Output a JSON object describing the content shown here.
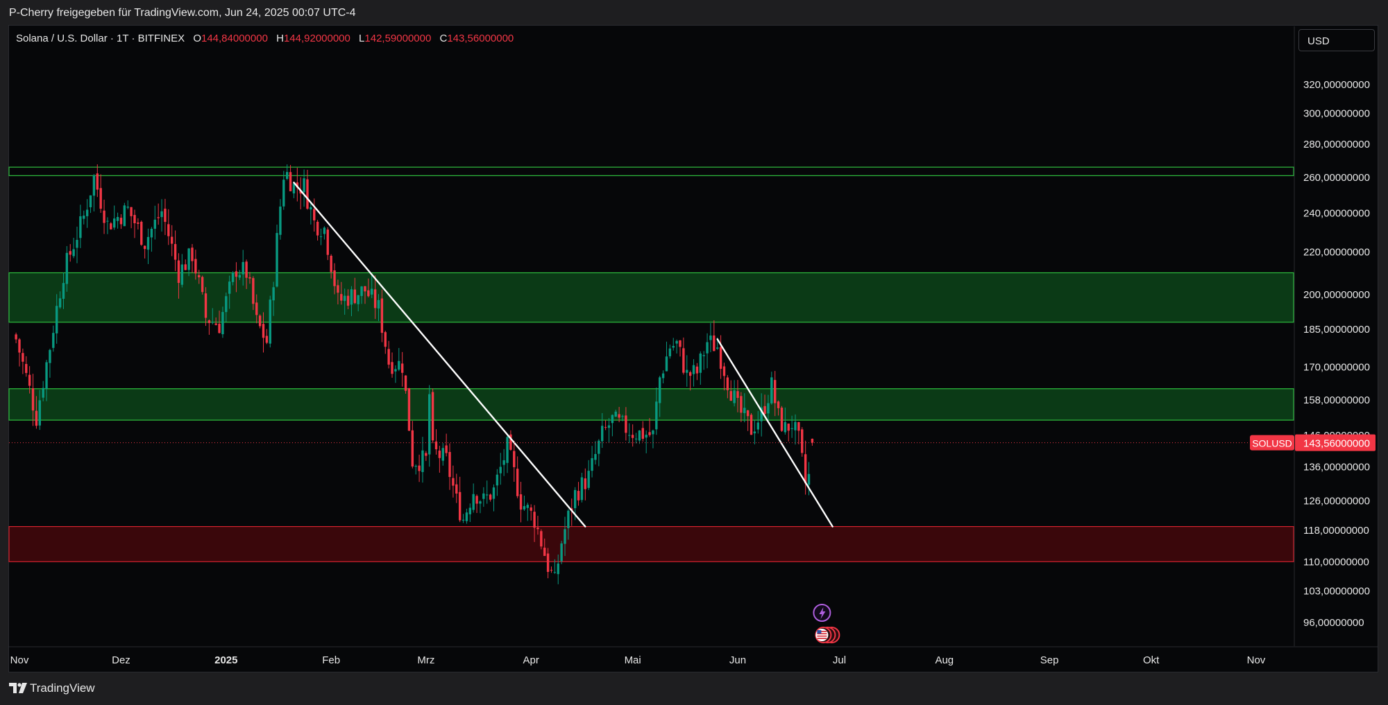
{
  "header": {
    "share_text": "P-Cherry freigegeben für TradingView.com, Jun 24, 2025 00:07 UTC-4"
  },
  "legend": {
    "symbol": "Solana / U.S. Dollar · 1T · BITFINEX",
    "open_label": "O",
    "open": "144,84000000",
    "high_label": "H",
    "high": "144,92000000",
    "low_label": "L",
    "low": "142,59000000",
    "close_label": "C",
    "close": "143,56000000"
  },
  "toolbar": {
    "currency": "USD"
  },
  "footer": {
    "brand": "TradingView"
  },
  "colors": {
    "background": "#060709",
    "up": "#089981",
    "down": "#f23645",
    "support_zone_fill": "#0b3a16",
    "support_zone_border": "#2fbf3f",
    "demand_zone_fill": "#3a070b",
    "demand_zone_border": "#d4232f",
    "trendline": "#ffffff"
  },
  "chart_data": {
    "type": "candlestick",
    "symbol": "SOLUSD",
    "exchange": "BITFINEX",
    "interval": "1T",
    "y_scale": "log",
    "y_ticks": [
      {
        "value": 320,
        "label": "320,00000000"
      },
      {
        "value": 300,
        "label": "300,00000000"
      },
      {
        "value": 280,
        "label": "280,00000000"
      },
      {
        "value": 260,
        "label": "260,00000000"
      },
      {
        "value": 240,
        "label": "240,00000000"
      },
      {
        "value": 220,
        "label": "220,00000000"
      },
      {
        "value": 200,
        "label": "200,00000000"
      },
      {
        "value": 185,
        "label": "185,00000000"
      },
      {
        "value": 170,
        "label": "170,00000000"
      },
      {
        "value": 158,
        "label": "158,00000000"
      },
      {
        "value": 146,
        "label": "146,00000000"
      },
      {
        "value": 136,
        "label": "136,00000000"
      },
      {
        "value": 126,
        "label": "126,00000000"
      },
      {
        "value": 118,
        "label": "118,00000000"
      },
      {
        "value": 110,
        "label": "110,00000000"
      },
      {
        "value": 103,
        "label": "103,00000000"
      },
      {
        "value": 96,
        "label": "96,00000000"
      }
    ],
    "x_ticks": [
      {
        "date": "2024-11-01",
        "label": "Nov",
        "bold": false
      },
      {
        "date": "2024-12-01",
        "label": "Dez",
        "bold": false
      },
      {
        "date": "2025-01-01",
        "label": "2025",
        "bold": true
      },
      {
        "date": "2025-02-01",
        "label": "Feb",
        "bold": false
      },
      {
        "date": "2025-03-01",
        "label": "Mrz",
        "bold": false
      },
      {
        "date": "2025-04-01",
        "label": "Apr",
        "bold": false
      },
      {
        "date": "2025-05-01",
        "label": "Mai",
        "bold": false
      },
      {
        "date": "2025-06-01",
        "label": "Jun",
        "bold": false
      },
      {
        "date": "2025-07-01",
        "label": "Jul",
        "bold": false
      },
      {
        "date": "2025-08-01",
        "label": "Aug",
        "bold": false
      },
      {
        "date": "2025-09-01",
        "label": "Sep",
        "bold": false
      },
      {
        "date": "2025-10-01",
        "label": "Okt",
        "bold": false
      },
      {
        "date": "2025-11-01",
        "label": "Nov",
        "bold": false
      }
    ],
    "last_price": {
      "value": 143.56,
      "label": "143,56000000",
      "tag": "SOLUSD"
    },
    "zones": [
      {
        "kind": "resistance",
        "top": 266,
        "bottom": 261
      },
      {
        "kind": "support",
        "top": 210,
        "bottom": 188
      },
      {
        "kind": "support",
        "top": 162,
        "bottom": 151
      },
      {
        "kind": "demand",
        "top": 119,
        "bottom": 110
      }
    ],
    "trendlines": [
      {
        "from": {
          "date": "2025-01-21",
          "price": 257
        },
        "to": {
          "date": "2025-04-17",
          "price": 119
        }
      },
      {
        "from": {
          "date": "2025-05-26",
          "price": 181
        },
        "to": {
          "date": "2025-06-29",
          "price": 119
        }
      }
    ],
    "anchors": [
      {
        "date": "2024-10-31",
        "price": 181
      },
      {
        "date": "2024-11-06",
        "price": 152
      },
      {
        "date": "2024-11-10",
        "price": 178
      },
      {
        "date": "2024-11-14",
        "price": 210
      },
      {
        "date": "2024-11-20",
        "price": 238
      },
      {
        "date": "2024-11-23",
        "price": 260
      },
      {
        "date": "2024-11-27",
        "price": 234
      },
      {
        "date": "2024-12-03",
        "price": 242
      },
      {
        "date": "2024-12-08",
        "price": 225
      },
      {
        "date": "2024-12-13",
        "price": 241
      },
      {
        "date": "2024-12-18",
        "price": 210
      },
      {
        "date": "2024-12-22",
        "price": 219
      },
      {
        "date": "2024-12-26",
        "price": 190
      },
      {
        "date": "2024-12-30",
        "price": 187
      },
      {
        "date": "2025-01-04",
        "price": 212
      },
      {
        "date": "2025-01-07",
        "price": 210
      },
      {
        "date": "2025-01-10",
        "price": 188
      },
      {
        "date": "2025-01-13",
        "price": 180
      },
      {
        "date": "2025-01-15",
        "price": 208
      },
      {
        "date": "2025-01-18",
        "price": 262
      },
      {
        "date": "2025-01-19",
        "price": 262
      },
      {
        "date": "2025-01-21",
        "price": 255
      },
      {
        "date": "2025-01-24",
        "price": 255
      },
      {
        "date": "2025-01-27",
        "price": 235
      },
      {
        "date": "2025-01-30",
        "price": 232
      },
      {
        "date": "2025-02-03",
        "price": 197
      },
      {
        "date": "2025-02-06",
        "price": 199
      },
      {
        "date": "2025-02-11",
        "price": 202
      },
      {
        "date": "2025-02-15",
        "price": 194
      },
      {
        "date": "2025-02-18",
        "price": 172
      },
      {
        "date": "2025-02-22",
        "price": 171
      },
      {
        "date": "2025-02-25",
        "price": 138
      },
      {
        "date": "2025-03-01",
        "price": 138
      },
      {
        "date": "2025-03-02",
        "price": 160
      },
      {
        "date": "2025-03-03",
        "price": 141
      },
      {
        "date": "2025-03-07",
        "price": 138
      },
      {
        "date": "2025-03-10",
        "price": 126
      },
      {
        "date": "2025-03-12",
        "price": 121
      },
      {
        "date": "2025-03-15",
        "price": 129
      },
      {
        "date": "2025-03-18",
        "price": 126
      },
      {
        "date": "2025-03-21",
        "price": 129
      },
      {
        "date": "2025-03-25",
        "price": 142
      },
      {
        "date": "2025-03-29",
        "price": 126
      },
      {
        "date": "2025-04-02",
        "price": 121
      },
      {
        "date": "2025-04-06",
        "price": 109
      },
      {
        "date": "2025-04-08",
        "price": 105
      },
      {
        "date": "2025-04-10",
        "price": 115
      },
      {
        "date": "2025-04-14",
        "price": 128
      },
      {
        "date": "2025-04-18",
        "price": 133
      },
      {
        "date": "2025-04-22",
        "price": 146
      },
      {
        "date": "2025-04-25",
        "price": 151
      },
      {
        "date": "2025-05-01",
        "price": 147
      },
      {
        "date": "2025-05-07",
        "price": 146
      },
      {
        "date": "2025-05-09",
        "price": 166
      },
      {
        "date": "2025-05-12",
        "price": 178
      },
      {
        "date": "2025-05-14",
        "price": 179
      },
      {
        "date": "2025-05-17",
        "price": 167
      },
      {
        "date": "2025-05-20",
        "price": 168
      },
      {
        "date": "2025-05-23",
        "price": 180
      },
      {
        "date": "2025-05-26",
        "price": 178
      },
      {
        "date": "2025-05-29",
        "price": 165
      },
      {
        "date": "2025-06-01",
        "price": 155
      },
      {
        "date": "2025-06-05",
        "price": 148
      },
      {
        "date": "2025-06-08",
        "price": 153
      },
      {
        "date": "2025-06-11",
        "price": 163
      },
      {
        "date": "2025-06-13",
        "price": 152
      },
      {
        "date": "2025-06-15",
        "price": 148
      },
      {
        "date": "2025-06-17",
        "price": 150
      },
      {
        "date": "2025-06-19",
        "price": 144
      },
      {
        "date": "2025-06-21",
        "price": 131
      },
      {
        "date": "2025-06-22",
        "price": 133
      },
      {
        "date": "2025-06-23",
        "price": 143.56
      }
    ],
    "event_markers": [
      {
        "date": "2025-06-23",
        "kind": "news-lightning"
      },
      {
        "date": "2025-06-23",
        "kind": "economic-events-us"
      }
    ]
  }
}
